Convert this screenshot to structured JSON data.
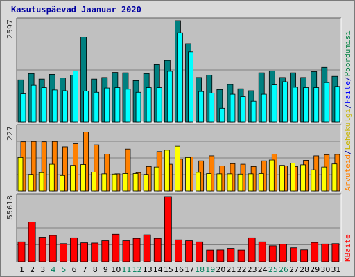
{
  "title": "Kasutuspäevad Jaanuar 2020",
  "colors": {
    "frame": "#d9d9d9",
    "plot_bg": "#c0c0c0",
    "grid": "#808080",
    "hits": "#008080",
    "files": "#00ffff",
    "pages": "#ff8000",
    "visits": "#ffff00",
    "kbytes": "#ff0000",
    "weekend_label": "#00805c",
    "weekday_label": "#000000",
    "title": "#0000a0"
  },
  "side_labels": {
    "top": [
      {
        "text": "Pöördumisi",
        "color": "#008040"
      },
      {
        "text": "/",
        "color": "#0000a0"
      },
      {
        "text": "Faile",
        "color": "#0000ff"
      },
      {
        "text": "/",
        "color": "#0000a0"
      },
      {
        "text": "Lehekülgi",
        "color": "#c8b400"
      },
      {
        "text": "/",
        "color": "#0000a0"
      },
      {
        "text": "Arvuteid",
        "color": "#ff8000"
      }
    ],
    "bottom": {
      "text": "KBaite",
      "color": "#ff0000"
    }
  },
  "chart_data": [
    {
      "type": "bar",
      "panel": "hits-files",
      "ymax_label": "2597",
      "ylim": [
        0,
        2597
      ],
      "series": [
        {
          "name": "Pöördumisi",
          "values": [
            1080,
            1240,
            1100,
            1220,
            1130,
            1200,
            2180,
            1100,
            1140,
            1270,
            1260,
            1060,
            1240,
            1470,
            1580,
            2597,
            2010,
            1140,
            1200,
            830,
            960,
            850,
            800,
            1260,
            1310,
            1140,
            1260,
            1140,
            1290,
            1400,
            1170
          ]
        },
        {
          "name": "Faile",
          "values": [
            720,
            940,
            880,
            820,
            800,
            1310,
            790,
            760,
            870,
            880,
            840,
            760,
            880,
            880,
            1300,
            2290,
            1800,
            780,
            740,
            350,
            710,
            650,
            530,
            710,
            950,
            1030,
            890,
            880,
            880,
            1010,
            910
          ]
        }
      ],
      "grid_lines": 3
    },
    {
      "type": "bar",
      "panel": "pages-visits",
      "ymax_label": "227",
      "ylim": [
        0,
        227
      ],
      "series": [
        {
          "name": "Lehekülgi",
          "values": [
            120,
            60,
            66,
            96,
            56,
            92,
            95,
            68,
            62,
            61,
            63,
            63,
            60,
            86,
            146,
            160,
            120,
            67,
            63,
            62,
            62,
            61,
            62,
            63,
            111,
            92,
            100,
            94,
            76,
            86,
            97
          ]
        },
        {
          "name": "Arvuteid",
          "values": [
            176,
            177,
            176,
            177,
            158,
            169,
            211,
            165,
            132,
            62,
            150,
            66,
            88,
            141,
            96,
            114,
            122,
            108,
            126,
            90,
            98,
            96,
            88,
            108,
            132,
            90,
            88,
            110,
            126,
            130,
            131
          ]
        }
      ],
      "grid_lines": 3
    },
    {
      "type": "bar",
      "panel": "kbytes",
      "ymax_label": "55618",
      "ylim": [
        0,
        55618
      ],
      "series": [
        {
          "name": "KBaite",
          "values": [
            17000,
            34000,
            21000,
            22500,
            15500,
            20500,
            16200,
            16000,
            18000,
            23500,
            18000,
            20000,
            23000,
            20000,
            55618,
            18800,
            18000,
            17000,
            10000,
            10100,
            11500,
            10000,
            20500,
            17000,
            13700,
            15000,
            12000,
            10200,
            16500,
            15200,
            15500
          ]
        }
      ],
      "grid_lines": 3
    }
  ],
  "days": [
    "1",
    "2",
    "3",
    "4",
    "5",
    "6",
    "7",
    "8",
    "9",
    "10",
    "11",
    "12",
    "13",
    "14",
    "15",
    "16",
    "17",
    "18",
    "19",
    "20",
    "21",
    "22",
    "23",
    "24",
    "25",
    "26",
    "27",
    "28",
    "29",
    "30",
    "31"
  ],
  "weekend_days": [
    4,
    5,
    11,
    12,
    18,
    19,
    25,
    26
  ]
}
